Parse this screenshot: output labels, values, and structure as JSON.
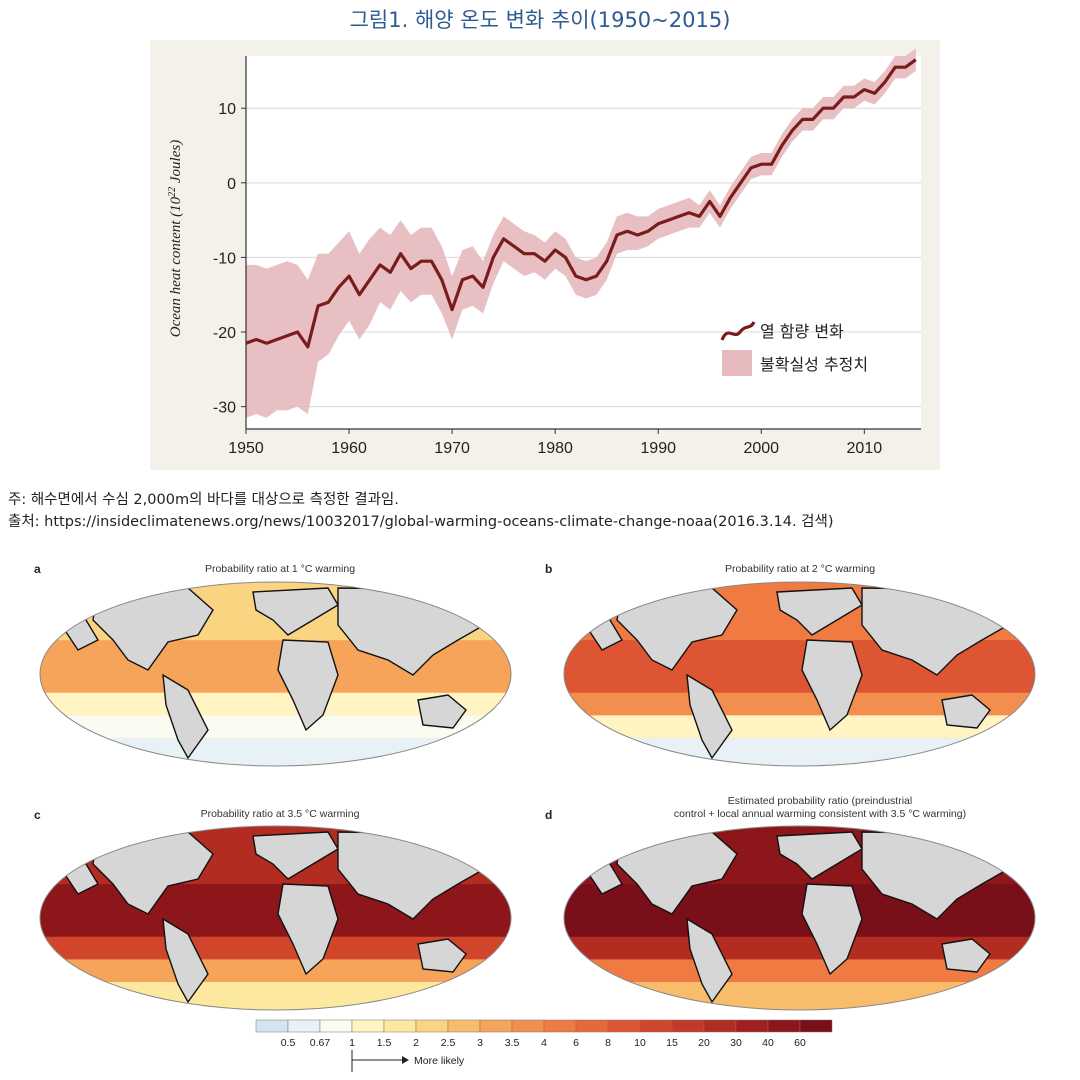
{
  "figure": {
    "title": "그림1. 해양 온도 변화 추이(1950~2015)",
    "note": "주: 해수면에서 수심 2,000m의 바다를 대상으로 측정한 결과임.",
    "source": "출처: https://insideclimatenews.org/news/10032017/global-warming-oceans-climate-change-noaa(2016.3.14. 검색)"
  },
  "chart_data": [
    {
      "type": "line",
      "title": "그림1. 해양 온도 변화 추이(1950~2015)",
      "xlabel": "",
      "ylabel_main": "Ocean heat content (10",
      "ylabel_sup": "22",
      "ylabel_tail": " Joules)",
      "xlim": [
        1950,
        2015.5
      ],
      "ylim": [
        -33,
        17
      ],
      "x_ticks": [
        1950,
        1960,
        1970,
        1980,
        1990,
        2000,
        2010
      ],
      "y_ticks": [
        10,
        0,
        -10,
        -20,
        -30
      ],
      "grid": true,
      "legend_position": "bottom-right",
      "colors": {
        "line": "#7b1c1c",
        "band": "#e6b9bd",
        "plot_bg": "#ffffff",
        "frame_bg": "#f3f1ea",
        "grid": "#d9d9d9"
      },
      "series": [
        {
          "name": "열 함량 변화",
          "kind": "line",
          "x": [
            1950,
            1951,
            1952,
            1953,
            1954,
            1955,
            1956,
            1957,
            1958,
            1959,
            1960,
            1961,
            1962,
            1963,
            1964,
            1965,
            1966,
            1967,
            1968,
            1969,
            1970,
            1971,
            1972,
            1973,
            1974,
            1975,
            1976,
            1977,
            1978,
            1979,
            1980,
            1981,
            1982,
            1983,
            1984,
            1985,
            1986,
            1987,
            1988,
            1989,
            1990,
            1991,
            1992,
            1993,
            1994,
            1995,
            1996,
            1997,
            1998,
            1999,
            2000,
            2001,
            2002,
            2003,
            2004,
            2005,
            2006,
            2007,
            2008,
            2009,
            2010,
            2011,
            2012,
            2013,
            2014,
            2015
          ],
          "values": [
            -21.5,
            -21,
            -21.5,
            -21,
            -20.5,
            -20,
            -22,
            -16.5,
            -16,
            -14,
            -12.5,
            -15,
            -13,
            -11,
            -12,
            -9.5,
            -11.5,
            -10.5,
            -10.5,
            -13,
            -17,
            -13,
            -12.5,
            -14,
            -10,
            -7.5,
            -8.5,
            -9.5,
            -9.5,
            -10.5,
            -9,
            -10,
            -12.5,
            -13,
            -12.5,
            -10.5,
            -7,
            -6.5,
            -7,
            -6.5,
            -5.5,
            -5,
            -4.5,
            -4,
            -4.5,
            -2.5,
            -4.5,
            -2,
            0,
            2,
            2.5,
            2.5,
            5,
            7,
            8.5,
            8.5,
            10,
            10,
            11.5,
            11.5,
            12.5,
            12,
            13.5,
            15.5,
            15.5,
            16.5
          ]
        },
        {
          "name": "불확실성 추정치",
          "kind": "band",
          "x": [
            1950,
            1951,
            1952,
            1953,
            1954,
            1955,
            1956,
            1957,
            1958,
            1959,
            1960,
            1961,
            1962,
            1963,
            1964,
            1965,
            1966,
            1967,
            1968,
            1969,
            1970,
            1971,
            1972,
            1973,
            1974,
            1975,
            1976,
            1977,
            1978,
            1979,
            1980,
            1981,
            1982,
            1983,
            1984,
            1985,
            1986,
            1987,
            1988,
            1989,
            1990,
            1991,
            1992,
            1993,
            1994,
            1995,
            1996,
            1997,
            1998,
            1999,
            2000,
            2001,
            2002,
            2003,
            2004,
            2005,
            2006,
            2007,
            2008,
            2009,
            2010,
            2011,
            2012,
            2013,
            2014,
            2015
          ],
          "lower": [
            -31.5,
            -31,
            -31.5,
            -30.5,
            -30.5,
            -30,
            -31,
            -24,
            -23,
            -20.5,
            -18.5,
            -21,
            -19,
            -16,
            -17,
            -14.5,
            -16,
            -15,
            -15,
            -17.5,
            -21,
            -17,
            -16.5,
            -17.5,
            -13.5,
            -10.5,
            -11.5,
            -12.5,
            -12,
            -13,
            -11.5,
            -12.5,
            -15,
            -15.5,
            -15,
            -13,
            -9.5,
            -9,
            -9,
            -8.5,
            -7.5,
            -7,
            -6.5,
            -6,
            -6,
            -4,
            -6,
            -3.5,
            -1.5,
            0.5,
            1,
            1,
            3.5,
            5.5,
            7,
            7,
            8.5,
            8.5,
            10,
            10,
            11,
            10.5,
            12,
            14,
            14,
            15
          ],
          "upper": [
            -11,
            -11,
            -11.5,
            -11,
            -10.5,
            -11,
            -13,
            -9.5,
            -9.5,
            -8,
            -6.5,
            -9.5,
            -7.5,
            -6,
            -7,
            -5,
            -7,
            -6,
            -6,
            -8.5,
            -12.5,
            -9,
            -8.5,
            -10.5,
            -7,
            -4.5,
            -5.5,
            -6.5,
            -7,
            -8,
            -6.5,
            -7.5,
            -10,
            -10.5,
            -10,
            -8,
            -4.5,
            -4,
            -4.5,
            -4.5,
            -3.5,
            -3,
            -2.5,
            -2,
            -3,
            -1,
            -3,
            -0.5,
            1.5,
            3.5,
            4,
            4,
            6.5,
            8.5,
            10,
            10,
            11.5,
            11.5,
            13,
            13,
            14,
            13.5,
            15,
            17,
            17,
            18
          ]
        }
      ]
    },
    {
      "type": "heatmap",
      "subtype": "global-map-panels",
      "panels": [
        {
          "letter": "a",
          "title": "Probability ratio at 1 °C warming",
          "intensity": 0.25
        },
        {
          "letter": "b",
          "title": "Probability ratio at 2 °C warming",
          "intensity": 0.5
        },
        {
          "letter": "c",
          "title": "Probability ratio at 3.5 °C warming",
          "intensity": 0.78
        },
        {
          "letter": "d",
          "title": "Estimated probability ratio (preindustrial",
          "title2": "control + local annual warming consistent with 3.5 °C warming)",
          "intensity": 0.88
        }
      ],
      "colorbar": {
        "ticks": [
          "0.5",
          "0.67",
          "1",
          "1.5",
          "2",
          "2.5",
          "3",
          "3.5",
          "4",
          "6",
          "8",
          "10",
          "15",
          "20",
          "30",
          "40",
          "60"
        ],
        "colors": [
          "#d2e6f2",
          "#e8f1f6",
          "#fbfbf2",
          "#fff4c2",
          "#fde8a0",
          "#fbd482",
          "#f9bc6a",
          "#f6a45a",
          "#f38f4e",
          "#ef7b43",
          "#e8683a",
          "#dd5532",
          "#d1452b",
          "#c33826",
          "#b22c22",
          "#a11f1e",
          "#8d161b",
          "#790f18"
        ],
        "arrow_label": "More likely"
      },
      "land_color": "#d6d6d6"
    }
  ]
}
